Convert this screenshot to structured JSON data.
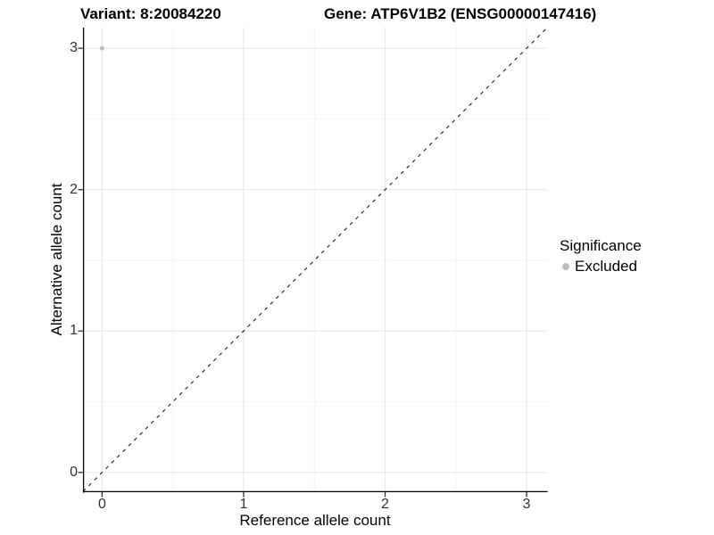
{
  "chart_data": {
    "type": "scatter",
    "titles": {
      "left": "Variant: 8:20084220",
      "right": "Gene: ATP6V1B2 (ENSG00000147416)"
    },
    "xlabel": "Reference allele count",
    "ylabel": "Alternative allele count",
    "xlim": [
      -0.135,
      3.145
    ],
    "ylim": [
      -0.14,
      3.146
    ],
    "x_ticks": [
      0,
      1,
      2,
      3
    ],
    "y_ticks": [
      0,
      1,
      2,
      3
    ],
    "x_minor_ticks": [
      0.5,
      1.5,
      2.5
    ],
    "y_minor_ticks": [
      0.5,
      1.5,
      2.5
    ],
    "grid": "major and minor gridlines on",
    "legend_position": "right",
    "legend": {
      "title": "Significance",
      "items": [
        {
          "label": "Excluded",
          "color": "#bcbcbc"
        }
      ]
    },
    "series": [
      {
        "name": "Excluded",
        "color": "#bcbcbc",
        "point_radius": 2.5,
        "points": [
          [
            0,
            3
          ]
        ]
      }
    ],
    "reference_line": {
      "type": "abline",
      "slope": 1,
      "intercept": 0,
      "style": "dashed",
      "color": "#1a1a1a"
    }
  },
  "style": {
    "grid_major_color": "#e8e8e8",
    "grid_minor_color": "#f2f2f2",
    "axis_line_color": "#000000",
    "tick_mark_color": "#333333",
    "tick_label_color": "#303030",
    "background_color": "#ffffff"
  }
}
